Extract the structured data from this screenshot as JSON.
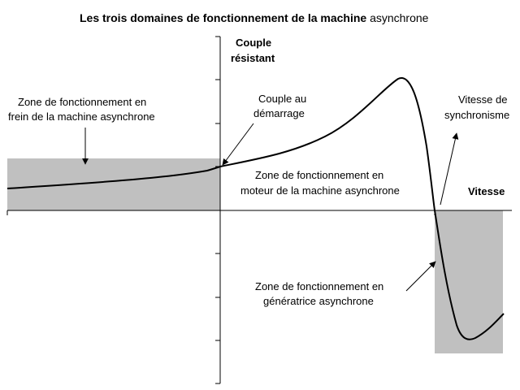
{
  "title": {
    "main": "Les trois domaines de fonctionnement de la machine",
    "suffix": "asynchrone"
  },
  "axes": {
    "y_label_line1": "Couple",
    "y_label_line2": "résistant",
    "x_label": "Vitesse"
  },
  "annotations": {
    "frein_line1": "Zone de fonctionnement en",
    "frein_line2": "frein de la machine asynchrone",
    "couple_demarrage_line1": "Couple au",
    "couple_demarrage_line2": "démarrage",
    "moteur_line1": "Zone de fonctionnement en",
    "moteur_line2": "moteur de la machine asynchrone",
    "synchronisme_line1": "Vitesse de",
    "synchronisme_line2": "synchronisme",
    "generatrice_line1": "Zone de fonctionnement en",
    "generatrice_line2": "génératrice asynchrone"
  },
  "colors": {
    "zone_fill": "#c0c0c0",
    "curve": "#000000",
    "axis": "#000000"
  }
}
